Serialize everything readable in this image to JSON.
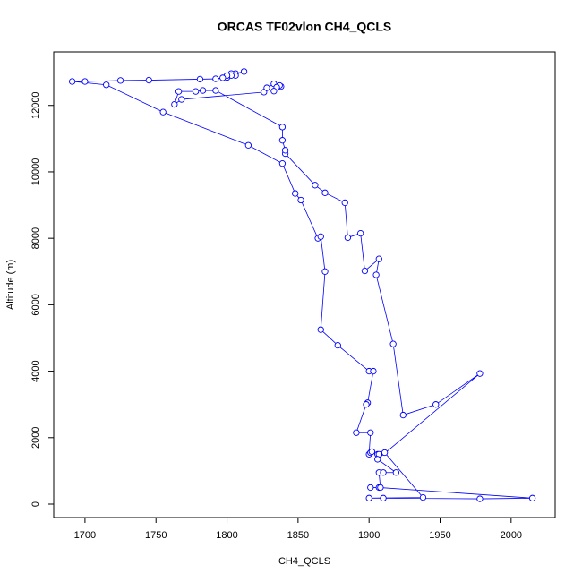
{
  "chart_data": {
    "type": "line",
    "title": "ORCAS TF02vlon CH4_QCLS",
    "x_label": "CH4_QCLS",
    "y_label": "Altitude (m)",
    "xlim": [
      1678,
      2031
    ],
    "ylim": [
      -404,
      13610
    ],
    "xticks": [
      1700,
      1750,
      1800,
      1850,
      1900,
      1950,
      2000
    ],
    "yticks": [
      0,
      2000,
      4000,
      6000,
      8000,
      10000,
      12000
    ],
    "series": [
      {
        "color": "#0000ff",
        "x": [
          1812,
          1806,
          1803,
          1806,
          1803,
          1800,
          1800,
          1797,
          1792,
          1781,
          1745,
          1725,
          1700,
          1691,
          1715,
          1755,
          1815,
          1839,
          1848,
          1852,
          1864,
          1866,
          1869,
          1866,
          1878,
          1900,
          1903,
          1899,
          1898,
          1891,
          1901,
          1900,
          1901,
          1902,
          1906,
          1907,
          1911,
          1938,
          1900,
          1910,
          1978,
          2015,
          1907,
          1901,
          1908,
          1907,
          1910,
          1919,
          1906,
          1978,
          1947,
          1924,
          1917,
          1905,
          1907,
          1897,
          1894,
          1885,
          1883,
          1869,
          1862,
          1841,
          1841,
          1839,
          1839,
          1792,
          1783,
          1778,
          1766,
          1763,
          1768,
          1826,
          1828,
          1833,
          1838,
          1837,
          1835,
          1833
        ],
        "y": [
          13020,
          12960,
          12960,
          12900,
          12900,
          12840,
          12900,
          12830,
          12800,
          12790,
          12760,
          12750,
          12720,
          12720,
          12620,
          11800,
          10800,
          10250,
          9350,
          9150,
          8000,
          8050,
          7000,
          5250,
          4780,
          4000,
          4000,
          3050,
          3000,
          2150,
          2150,
          1500,
          1550,
          1580,
          1500,
          1500,
          1550,
          200,
          180,
          180,
          160,
          180,
          500,
          500,
          500,
          950,
          950,
          950,
          1350,
          3930,
          3000,
          2680,
          4820,
          6900,
          7380,
          7020,
          8150,
          8020,
          9070,
          9370,
          9600,
          10550,
          10650,
          10950,
          11350,
          12450,
          12450,
          12420,
          12420,
          12030,
          12180,
          12400,
          12530,
          12650,
          12570,
          12600,
          12550,
          12430
        ]
      }
    ]
  }
}
